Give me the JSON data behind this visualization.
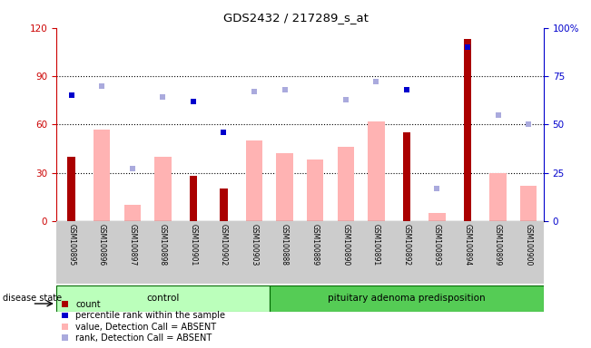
{
  "title": "GDS2432 / 217289_s_at",
  "samples": [
    "GSM100895",
    "GSM100896",
    "GSM100897",
    "GSM100898",
    "GSM100901",
    "GSM100902",
    "GSM100903",
    "GSM100888",
    "GSM100889",
    "GSM100890",
    "GSM100891",
    "GSM100892",
    "GSM100893",
    "GSM100894",
    "GSM100899",
    "GSM100900"
  ],
  "control_count": 7,
  "pituitary_count": 9,
  "count_values": [
    40,
    0,
    0,
    0,
    28,
    20,
    0,
    0,
    0,
    0,
    0,
    55,
    0,
    113,
    0,
    0
  ],
  "pink_bar_values": [
    0,
    57,
    10,
    40,
    0,
    0,
    50,
    42,
    38,
    46,
    62,
    0,
    5,
    0,
    30,
    22
  ],
  "blue_square_values": [
    65,
    0,
    0,
    0,
    62,
    46,
    0,
    0,
    0,
    0,
    0,
    68,
    0,
    90,
    0,
    0
  ],
  "lavender_square_values": [
    0,
    70,
    27,
    64,
    0,
    0,
    67,
    68,
    0,
    63,
    72,
    0,
    17,
    0,
    55,
    50
  ],
  "ylim_left": [
    0,
    120
  ],
  "ylim_right": [
    0,
    100
  ],
  "yticks_left": [
    0,
    30,
    60,
    90,
    120
  ],
  "yticks_right": [
    0,
    25,
    50,
    75,
    100
  ],
  "ytick_right_labels": [
    "0",
    "25",
    "50",
    "75",
    "100%"
  ],
  "ylabel_left_color": "#cc0000",
  "ylabel_right_color": "#0000cc",
  "bar_color_count": "#aa0000",
  "bar_color_pink": "#ffb3b3",
  "square_color_blue": "#0000cc",
  "square_color_lavender": "#aaaadd",
  "bg_xtick": "#cccccc",
  "bg_control": "#bbffbb",
  "bg_pituitary": "#55cc55",
  "legend_items": [
    "count",
    "percentile rank within the sample",
    "value, Detection Call = ABSENT",
    "rank, Detection Call = ABSENT"
  ],
  "legend_colors": [
    "#aa0000",
    "#0000cc",
    "#ffb3b3",
    "#aaaadd"
  ]
}
